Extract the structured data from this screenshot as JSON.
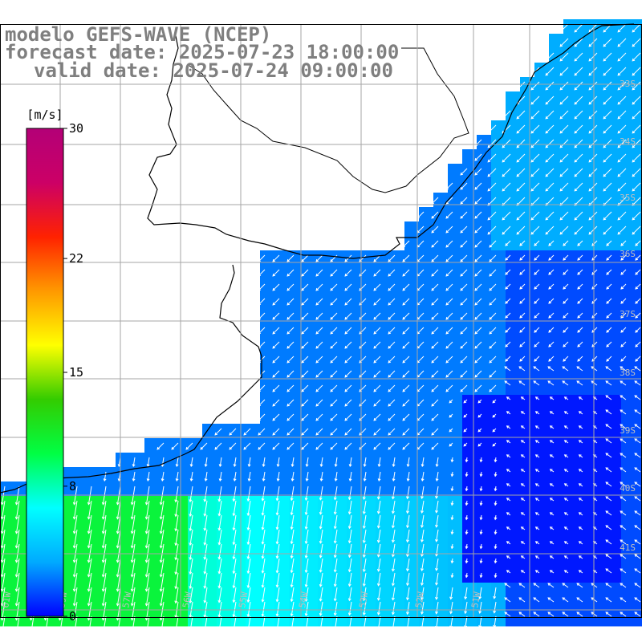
{
  "header": {
    "title": "modelo GEFS-WAVE (NCEP)",
    "forecast_date": "forecast date: 2025-07-23 18:00:00",
    "valid_date": "valid date: 2025-07-24 09:00:00"
  },
  "colorbar": {
    "unit": "[m/s]",
    "tick_labels": [
      "30",
      "22",
      "15",
      "8",
      "0"
    ],
    "tick_values": [
      30,
      22,
      15,
      8,
      0
    ],
    "min": 0,
    "max": 30,
    "colors": [
      "#0000ff",
      "#00aaff",
      "#00ffff",
      "#00ff44",
      "#33cc00",
      "#ffff00",
      "#ff9900",
      "#ff2200",
      "#cc0066",
      "#b30077"
    ]
  },
  "axes": {
    "lon_labels": [
      "61W",
      "59W",
      "57W",
      "56W",
      "55W",
      "54W",
      "53W",
      "52W",
      "51W"
    ],
    "lat_labels": [
      "33S",
      "34S",
      "35S",
      "36S",
      "37S",
      "38S",
      "39S",
      "40S",
      "41S"
    ]
  },
  "colors": {
    "land": "#ffffff",
    "coast": "#000000",
    "grid": "#a6a6a6",
    "arrow": "#ffffff",
    "title": "#7f7f7f"
  }
}
